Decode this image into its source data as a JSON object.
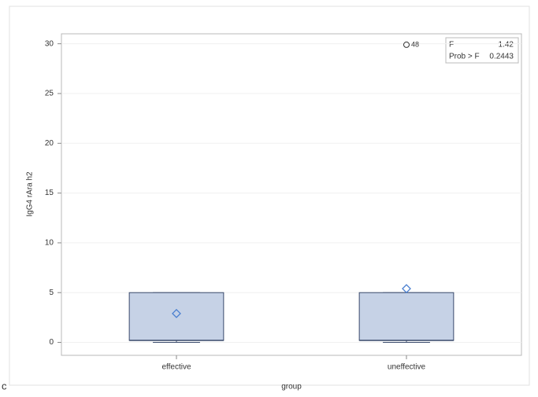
{
  "chart_data": {
    "type": "box",
    "categories": [
      "effective",
      "uneffective"
    ],
    "boxes": [
      {
        "min": 0,
        "q1": 0.2,
        "median": 0.2,
        "q3": 5,
        "max": 5,
        "mean": 2.9,
        "outliers": []
      },
      {
        "min": 0,
        "q1": 0.2,
        "median": 0.2,
        "q3": 5,
        "max": 5,
        "mean": 5.4,
        "outliers": [
          29.9
        ],
        "outlier_labels": [
          "48"
        ]
      }
    ],
    "x_label": "group",
    "y_label": "IgG4 rAra h2",
    "ylim": [
      -1.3,
      31
    ],
    "yticks": [
      0,
      5,
      10,
      15,
      20,
      25,
      30
    ],
    "grid": true,
    "box_color": "#c6d2e6",
    "edge_color": "#3a4a6b",
    "mean_color": "#4a7fd0",
    "stats": [
      {
        "label": "F",
        "value": 1.42
      },
      {
        "label": "Prob > F",
        "value": 0.2443
      }
    ],
    "panel_label": "c"
  }
}
